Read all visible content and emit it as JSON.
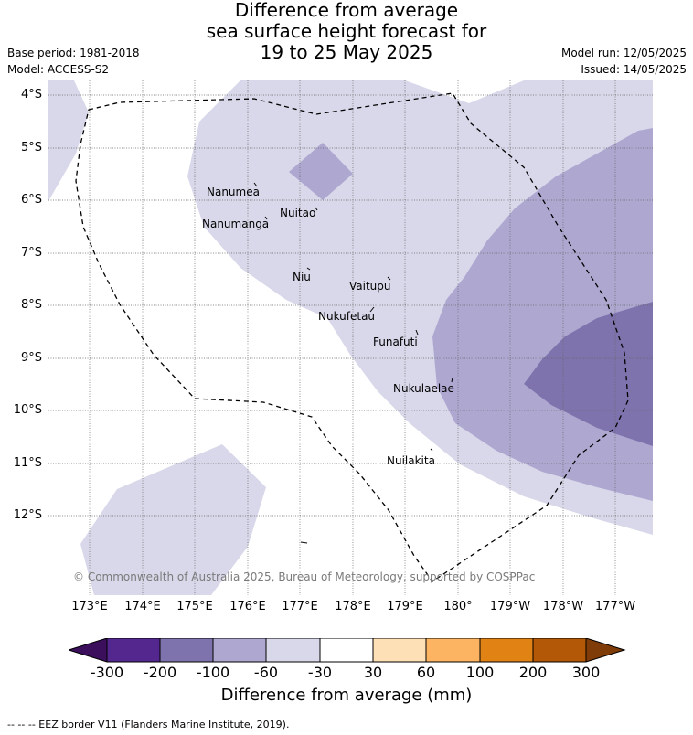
{
  "title": {
    "line1": "Difference from average",
    "line2": "sea surface height forecast for",
    "line3": "19 to 25 May 2025"
  },
  "meta_left": {
    "base_period": "Base period: 1981-2018",
    "model": "Model: ACCESS-S2"
  },
  "meta_right": {
    "model_run": "Model run: 12/05/2025",
    "issued": "Issued: 14/05/2025"
  },
  "latitude_labels": [
    "4°S",
    "5°S",
    "6°S",
    "7°S",
    "8°S",
    "9°S",
    "10°S",
    "11°S",
    "12°S"
  ],
  "longitude_labels": [
    "173°E",
    "174°E",
    "175°E",
    "176°E",
    "177°E",
    "178°E",
    "179°E",
    "180°",
    "179°W",
    "178°W",
    "177°W"
  ],
  "islands": {
    "nanumea": "Nanumea",
    "nuitao": "Nuitao",
    "nanumanga": "Nanumanga",
    "niu": "Niu",
    "vaitupu": "Vaitupu",
    "nukufetau": "Nukufetau",
    "funafuti": "Funafuti",
    "nukulaelae": "Nukulaelae",
    "nuilakita": "Nuilakita"
  },
  "copyright": "© Commonwealth of Australia 2025, Bureau of Meteorology, supported by COSPPac",
  "colorbar": {
    "ticks": [
      "-300",
      "-200",
      "-100",
      "-60",
      "-30",
      "30",
      "60",
      "100",
      "200",
      "300"
    ],
    "colors": [
      "#3b0f5c",
      "#54278f",
      "#7f73ad",
      "#aea8d1",
      "#d8d8ea",
      "#ffffff",
      "#fee0b6",
      "#fdb462",
      "#e08214",
      "#b35806",
      "#7f3b08"
    ],
    "label": "Difference from average (mm)"
  },
  "footnote": "--  --  -- EEZ border V11 (Flanders Marine Institute, 2019)."
}
